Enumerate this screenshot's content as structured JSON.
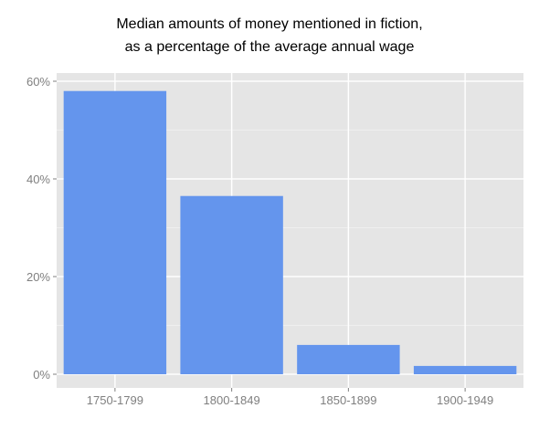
{
  "chart_data": {
    "type": "bar",
    "title_lines": [
      "Median amounts of money mentioned in fiction,",
      "as a percentage of the average annual wage"
    ],
    "categories": [
      "1750-1799",
      "1800-1849",
      "1850-1899",
      "1900-1949"
    ],
    "values": [
      58,
      36.5,
      6,
      1.7
    ],
    "y_ticks": [
      0,
      20,
      40,
      60
    ],
    "y_tick_labels": [
      "0%",
      "20%",
      "40%",
      "60%"
    ],
    "ylim": [
      0,
      61.5
    ],
    "grid": true,
    "legend": "none",
    "colors": {
      "bar": "#6495ED",
      "panel": "#E5E5E5",
      "grid_major": "#FFFFFF",
      "grid_minor": "#F2F2F2",
      "tick_text": "#7F7F7F"
    }
  }
}
